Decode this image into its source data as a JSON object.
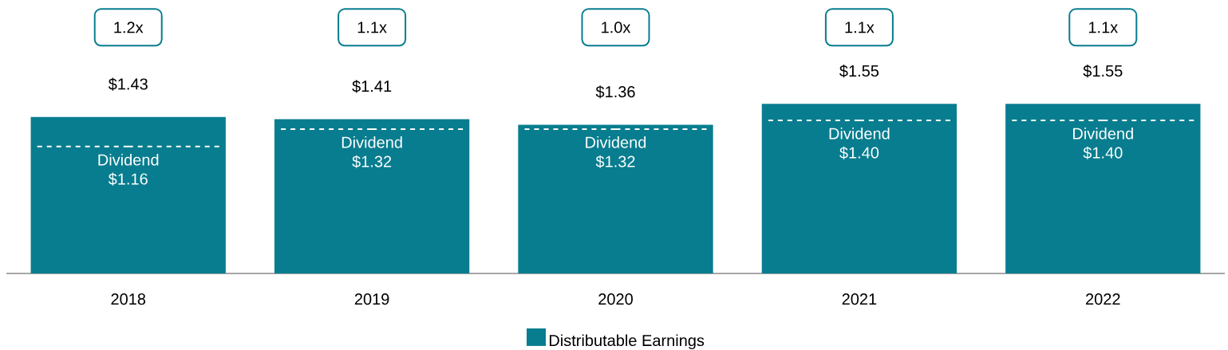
{
  "chart_data": {
    "type": "bar",
    "categories": [
      "2018",
      "2019",
      "2020",
      "2021",
      "2022"
    ],
    "series": [
      {
        "name": "Distributable Earnings",
        "color": "#087d8f",
        "values": [
          1.43,
          1.41,
          1.36,
          1.55,
          1.55
        ],
        "value_labels": [
          "$1.43",
          "$1.41",
          "$1.36",
          "$1.55",
          "$1.55"
        ]
      },
      {
        "name": "Dividend",
        "type": "step",
        "line_style": "dashed",
        "color": "#ffffff",
        "values": [
          1.16,
          1.32,
          1.32,
          1.4,
          1.4
        ],
        "value_labels": [
          "$1.16",
          "$1.32",
          "$1.32",
          "$1.40",
          "$1.40"
        ]
      }
    ],
    "legend": "bottom",
    "annotations": [
      "1.2x",
      "1.1x",
      "1.0x",
      "1.1x",
      "1.1x"
    ]
  }
}
